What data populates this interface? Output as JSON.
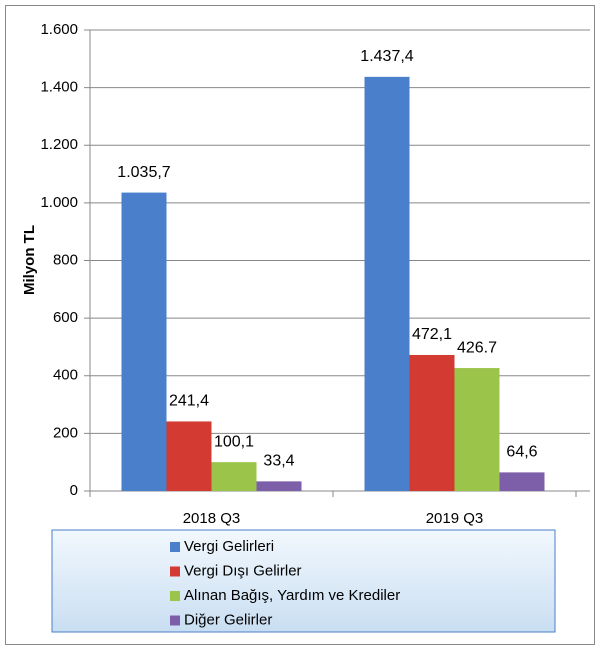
{
  "chart_data": {
    "type": "bar",
    "categories": [
      "2018 Q3",
      "2019 Q3"
    ],
    "y_label": "Milyon TL",
    "series": [
      {
        "name": "Vergi Gelirleri",
        "color": "#4a7fcb",
        "values": [
          1035.7,
          1437.4
        ],
        "value_labels": [
          "1.035,7",
          "1.437,4"
        ]
      },
      {
        "name": "Vergi Dışı Gelirler",
        "color": "#d33b32",
        "values": [
          241.4,
          472.1
        ],
        "value_labels": [
          "241,4",
          "472,1"
        ]
      },
      {
        "name": "Alınan Bağış, Yardım ve Krediler",
        "color": "#9bc44a",
        "values": [
          100.1,
          426.7
        ],
        "value_labels": [
          "100,1",
          "426.7"
        ]
      },
      {
        "name": "Diğer Gelirler",
        "color": "#7d5ea8",
        "values": [
          33.4,
          64.6
        ],
        "value_labels": [
          "33,4",
          "64,6"
        ]
      }
    ],
    "ylim": [
      0,
      1600
    ],
    "yticks": [
      0,
      200,
      400,
      600,
      800,
      {
        "value": 1000,
        "label": "1.000"
      },
      {
        "value": 1200,
        "label": "1.200"
      },
      {
        "value": 1400,
        "label": "1.400"
      },
      {
        "value": 1600,
        "label": "1.600"
      }
    ],
    "grid": true
  }
}
